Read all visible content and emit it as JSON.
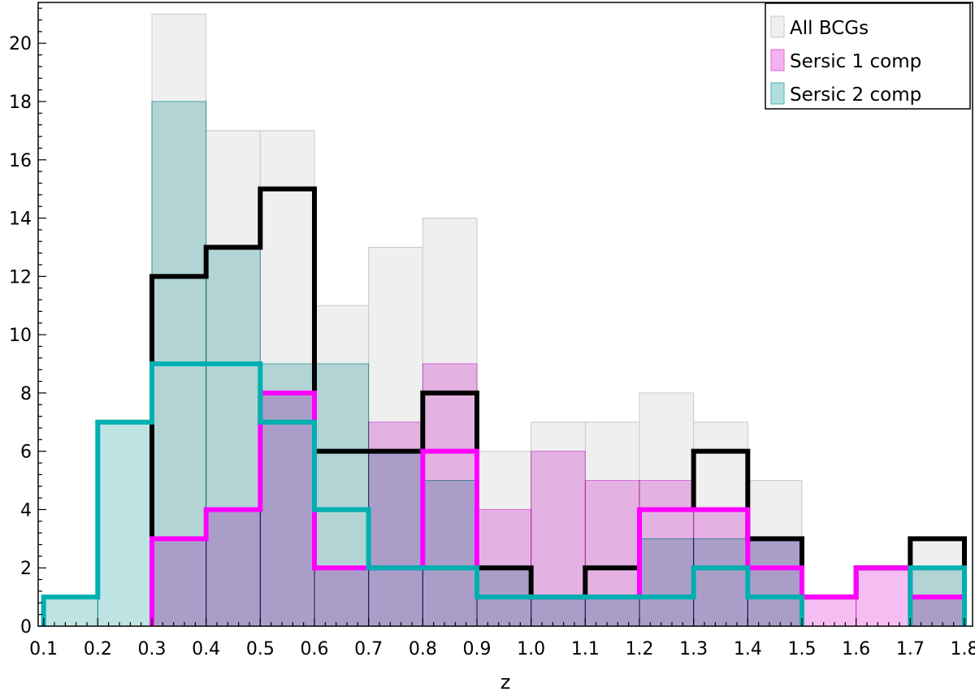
{
  "chart_data": {
    "type": "bar",
    "chart_subtype": "overlaid histogram",
    "title": "",
    "xlabel": "z",
    "ylabel": "",
    "xlim": [
      0.1,
      1.8
    ],
    "ylim": [
      0,
      21.4
    ],
    "grid": false,
    "legend_position": "top-right",
    "bins": [
      0.1,
      0.2,
      0.3,
      0.4,
      0.5,
      0.6,
      0.7,
      0.8,
      0.9,
      1.0,
      1.1,
      1.2,
      1.3,
      1.4,
      1.5,
      1.6,
      1.7,
      1.8
    ],
    "x_ticks": [
      "0.1",
      "0.2",
      "0.3",
      "0.4",
      "0.5",
      "0.6",
      "0.7",
      "0.8",
      "0.9",
      "1.0",
      "1.1",
      "1.2",
      "1.3",
      "1.4",
      "1.5",
      "1.6",
      "1.7",
      "1.8"
    ],
    "y_ticks": [
      "0",
      "2",
      "4",
      "6",
      "8",
      "10",
      "12",
      "14",
      "16",
      "18",
      "20"
    ],
    "filled_series": [
      {
        "name": "All BCGs",
        "color": "#efefef",
        "edge": "#c8c8c8",
        "values": [
          0,
          0,
          21,
          17,
          17,
          11,
          13,
          14,
          6,
          7,
          7,
          8,
          7,
          5,
          0,
          0,
          3
        ]
      },
      {
        "name": "Sersic 1 comp",
        "color": "#f2b3f0",
        "edge": "#e36ee0",
        "values": [
          0,
          0,
          3,
          4,
          8,
          2,
          7,
          9,
          4,
          6,
          5,
          5,
          4,
          3,
          1,
          2,
          1
        ]
      },
      {
        "name": "Sersic 2 comp",
        "color": "#b3dede",
        "edge": "#4fb0b0",
        "values": [
          1,
          7,
          18,
          13,
          9,
          9,
          6,
          5,
          2,
          1,
          1,
          3,
          3,
          3,
          0,
          0,
          2
        ]
      }
    ],
    "step_series": [
      {
        "color": "#000000",
        "values": [
          0,
          0,
          12,
          13,
          15,
          6,
          6,
          8,
          2,
          1,
          2,
          4,
          6,
          3,
          1,
          2,
          3
        ]
      },
      {
        "color": "#ff00ff",
        "values": [
          0,
          0,
          3,
          4,
          8,
          2,
          2,
          6,
          1,
          1,
          1,
          4,
          4,
          2,
          1,
          2,
          1
        ]
      },
      {
        "color": "#00b0b0",
        "values": [
          1,
          7,
          9,
          9,
          7,
          4,
          2,
          2,
          1,
          1,
          1,
          1,
          2,
          1,
          0,
          0,
          2
        ]
      }
    ]
  }
}
